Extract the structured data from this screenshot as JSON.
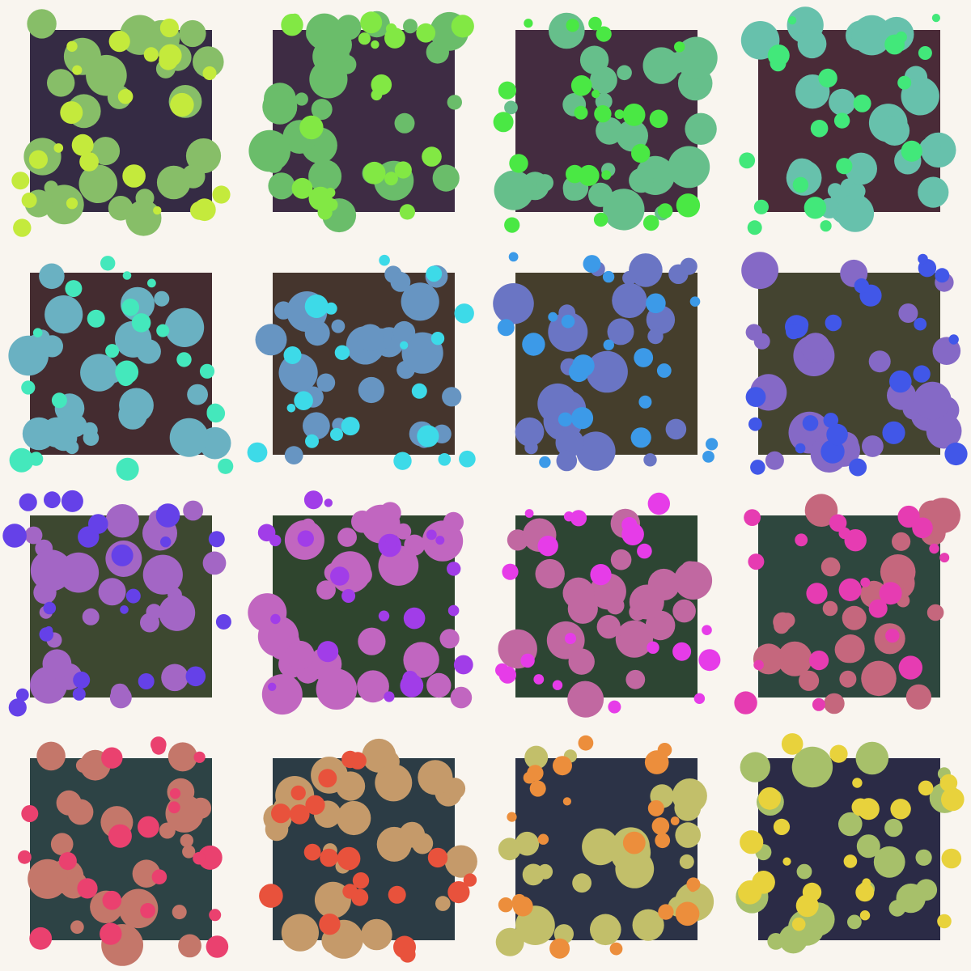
{
  "background": "#f9f5ef",
  "grid": {
    "rows": 4,
    "cols": 4
  },
  "tiles": [
    {
      "square": "#352b44",
      "big": "#87be68",
      "small": "#c4ea3c",
      "bigCount": 26,
      "smallCount": 24,
      "seed": 11
    },
    {
      "square": "#3e2c44",
      "big": "#6abd6a",
      "small": "#82e844",
      "bigCount": 28,
      "smallCount": 22,
      "seed": 23
    },
    {
      "square": "#442c40",
      "big": "#66bf8b",
      "small": "#4ae844",
      "bigCount": 26,
      "smallCount": 24,
      "seed": 37
    },
    {
      "square": "#4a2b38",
      "big": "#67c1ac",
      "small": "#42e87a",
      "bigCount": 26,
      "smallCount": 20,
      "seed": 41
    },
    {
      "square": "#442c30",
      "big": "#6ab1c2",
      "small": "#44e8bc",
      "bigCount": 28,
      "smallCount": 22,
      "seed": 53
    },
    {
      "square": "#45352d",
      "big": "#6795c2",
      "small": "#3ddae8",
      "bigCount": 28,
      "smallCount": 20,
      "seed": 67
    },
    {
      "square": "#453e2c",
      "big": "#6a75c4",
      "small": "#3c9ae8",
      "bigCount": 24,
      "smallCount": 22,
      "seed": 71
    },
    {
      "square": "#444430",
      "big": "#8569c6",
      "small": "#4157e8",
      "bigCount": 24,
      "smallCount": 24,
      "seed": 83
    },
    {
      "square": "#3d4830",
      "big": "#a366c5",
      "small": "#6541e8",
      "bigCount": 26,
      "smallCount": 22,
      "seed": 97
    },
    {
      "square": "#2f452e",
      "big": "#c166c0",
      "small": "#a13de8",
      "bigCount": 30,
      "smallCount": 22,
      "seed": 101
    },
    {
      "square": "#2d4533",
      "big": "#c168a1",
      "small": "#e63ce8",
      "bigCount": 28,
      "smallCount": 22,
      "seed": 113
    },
    {
      "square": "#2e473e",
      "big": "#c5677d",
      "small": "#e63cb2",
      "bigCount": 26,
      "smallCount": 22,
      "seed": 127
    },
    {
      "square": "#2d4345",
      "big": "#c4776a",
      "small": "#ea416f",
      "bigCount": 26,
      "smallCount": 22,
      "seed": 131
    },
    {
      "square": "#2c3c45",
      "big": "#c59a6a",
      "small": "#e8523c",
      "bigCount": 26,
      "smallCount": 22,
      "seed": 139
    },
    {
      "square": "#2c3347",
      "big": "#c2bf6a",
      "small": "#ec8e3c",
      "bigCount": 24,
      "smallCount": 24,
      "seed": 149
    },
    {
      "square": "#2b2b46",
      "big": "#a7c06a",
      "small": "#e8d23c",
      "bigCount": 26,
      "smallCount": 24,
      "seed": 157
    }
  ]
}
